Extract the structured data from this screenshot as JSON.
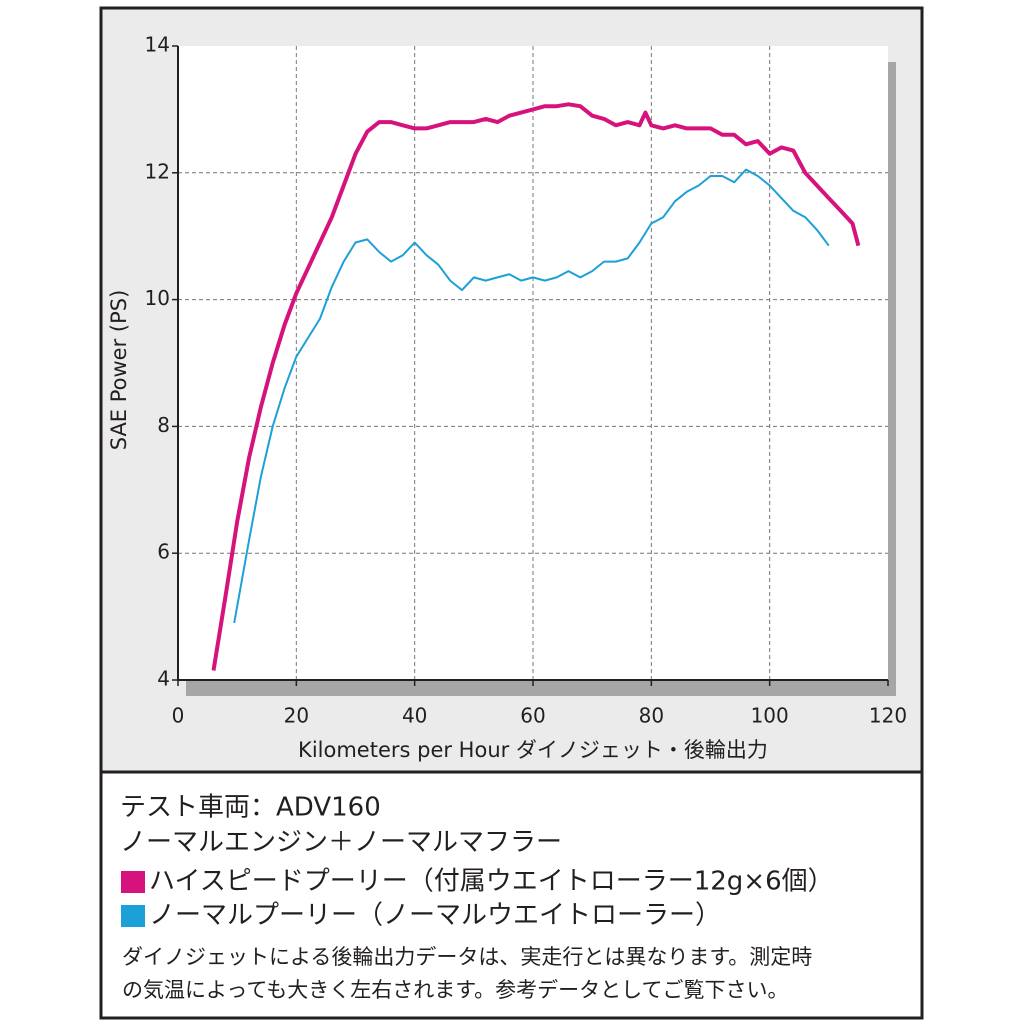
{
  "chart_data": {
    "type": "line",
    "x_label": "Kilometers per Hour ダイノジェット・後輪出力",
    "y_label": "SAE Power (PS)",
    "xlim": [
      0,
      120
    ],
    "xticks": [
      0,
      20,
      40,
      60,
      80,
      100,
      120
    ],
    "ylim": [
      4,
      14
    ],
    "yticks": [
      4,
      6,
      8,
      10,
      12,
      14
    ],
    "grid": true,
    "annotations": [
      "テスト車両：ADV160",
      "ノーマルエンジン＋ノーマルマフラー",
      "ダイノジェットによる後輪出力データは、実走行とは異なります。測定時",
      "の気温によっても大きく左右されます。参考データとしてご覧下さい。"
    ],
    "series": [
      {
        "name": "ハイスピードプーリー（付属ウエイトローラー12g×6個）",
        "color": "#d6137c",
        "x": [
          6,
          8,
          10,
          12,
          14,
          16,
          18,
          20,
          22,
          24,
          26,
          28,
          30,
          32,
          34,
          36,
          38,
          40,
          42,
          44,
          46,
          48,
          50,
          52,
          54,
          56,
          58,
          60,
          62,
          64,
          66,
          68,
          70,
          72,
          74,
          76,
          78,
          79,
          80,
          82,
          84,
          86,
          88,
          90,
          92,
          94,
          96,
          98,
          100,
          102,
          104,
          106,
          108,
          110,
          112,
          114,
          115
        ],
        "values": [
          4.15,
          5.3,
          6.5,
          7.5,
          8.3,
          9.0,
          9.6,
          10.1,
          10.5,
          10.9,
          11.3,
          11.8,
          12.3,
          12.65,
          12.8,
          12.8,
          12.75,
          12.7,
          12.7,
          12.75,
          12.8,
          12.8,
          12.8,
          12.85,
          12.8,
          12.9,
          12.95,
          13.0,
          13.05,
          13.05,
          13.08,
          13.05,
          12.9,
          12.85,
          12.75,
          12.8,
          12.75,
          12.95,
          12.75,
          12.7,
          12.75,
          12.7,
          12.7,
          12.7,
          12.6,
          12.6,
          12.45,
          12.5,
          12.3,
          12.4,
          12.35,
          12.0,
          11.8,
          11.6,
          11.4,
          11.2,
          10.85
        ]
      },
      {
        "name": "ノーマルプーリー（ノーマルウエイトローラー）",
        "color": "#1ca0d8",
        "x": [
          9.5,
          12,
          14,
          16,
          18,
          20,
          22,
          24,
          26,
          28,
          30,
          32,
          34,
          36,
          38,
          40,
          42,
          44,
          46,
          48,
          50,
          52,
          54,
          56,
          58,
          60,
          62,
          64,
          66,
          68,
          70,
          72,
          74,
          76,
          78,
          80,
          82,
          84,
          86,
          88,
          90,
          92,
          94,
          96,
          98,
          100,
          102,
          104,
          106,
          108,
          110
        ],
        "values": [
          4.9,
          6.2,
          7.2,
          8.0,
          8.6,
          9.1,
          9.4,
          9.7,
          10.2,
          10.6,
          10.9,
          10.95,
          10.75,
          10.6,
          10.7,
          10.9,
          10.7,
          10.55,
          10.3,
          10.15,
          10.35,
          10.3,
          10.35,
          10.4,
          10.3,
          10.35,
          10.3,
          10.35,
          10.45,
          10.35,
          10.45,
          10.6,
          10.6,
          10.65,
          10.9,
          11.2,
          11.3,
          11.55,
          11.7,
          11.8,
          11.95,
          11.95,
          11.85,
          12.05,
          11.95,
          11.8,
          11.6,
          11.4,
          11.3,
          11.1,
          10.85
        ]
      }
    ]
  }
}
